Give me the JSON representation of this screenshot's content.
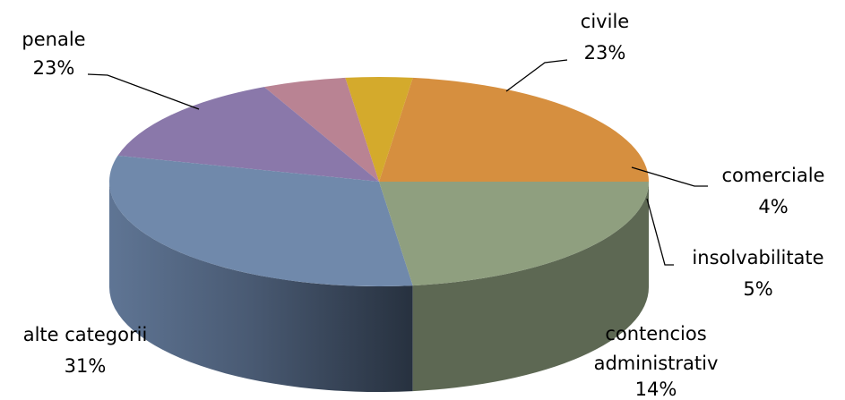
{
  "chart_data": {
    "type": "pie",
    "three_d": true,
    "legend": "none",
    "slices": [
      {
        "name": "civile",
        "value": 23,
        "label": "23%",
        "color": "#d68f3f"
      },
      {
        "name": "comerciale",
        "value": 4,
        "label": "4%",
        "color": "#d4aa2c"
      },
      {
        "name": "insolvabilitate",
        "value": 5,
        "label": "5%",
        "color": "#b98393"
      },
      {
        "name": "contencios administrativ",
        "name_lines": [
          "contencios",
          "administrativ"
        ],
        "value": 14,
        "label": "14%",
        "color": "#8a78aa"
      },
      {
        "name": "alte categorii",
        "value": 31,
        "label": "31%",
        "color": "#7089ab"
      },
      {
        "name": "penale",
        "value": 23,
        "label": "23%",
        "color": "#8f9f7f"
      }
    ]
  }
}
